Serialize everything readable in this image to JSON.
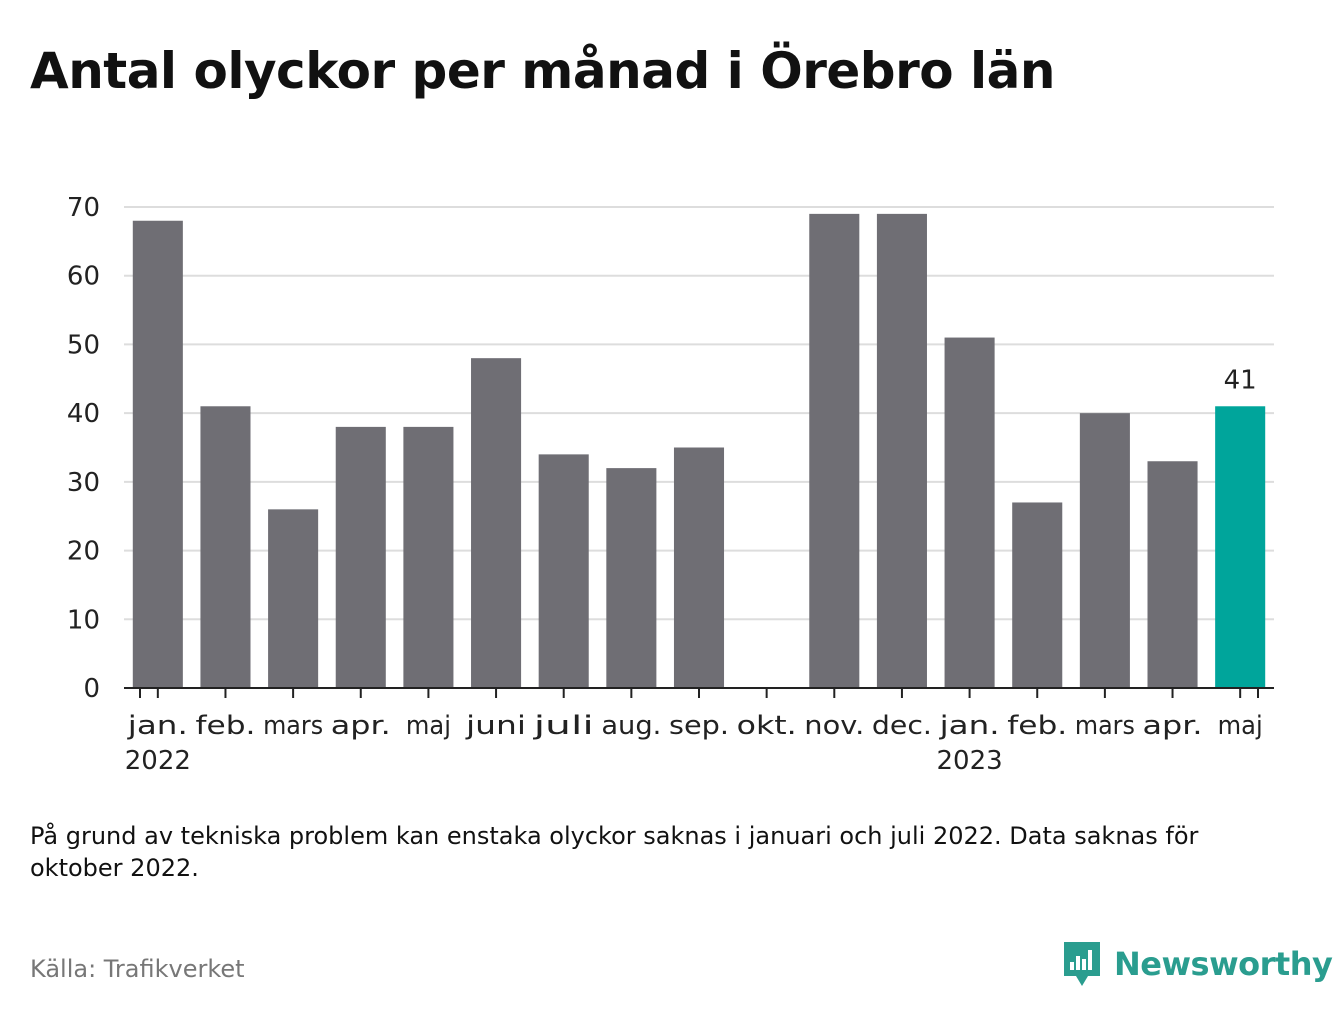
{
  "title": "Antal olyckor per månad i Örebro län",
  "note": "På grund av tekniska problem kan enstaka olyckor saknas i januari och juli 2022. Data saknas för oktober 2022.",
  "source": "Källa: Trafikverket",
  "brand": "Newsworthy",
  "colors": {
    "bar": "#6f6e74",
    "highlight": "#00a59b",
    "grid": "#dddddd",
    "axis": "#222222",
    "brand": "#2a9d8f"
  },
  "chart_data": {
    "type": "bar",
    "categories": [
      "jan.",
      "feb.",
      "mars",
      "apr.",
      "maj",
      "juni",
      "juli",
      "aug.",
      "sep.",
      "okt.",
      "nov.",
      "dec.",
      "jan.",
      "feb.",
      "mars",
      "apr.",
      "maj"
    ],
    "year_labels": [
      {
        "index": 0,
        "label": "2022"
      },
      {
        "index": 12,
        "label": "2023"
      }
    ],
    "values": [
      68,
      41,
      26,
      38,
      38,
      48,
      34,
      32,
      35,
      null,
      69,
      69,
      51,
      27,
      40,
      33,
      41
    ],
    "highlight_index": 16,
    "highlight_label": "41",
    "yticks": [
      0,
      10,
      20,
      30,
      40,
      50,
      60,
      70
    ],
    "ylim": [
      0,
      70
    ],
    "grid": true
  }
}
